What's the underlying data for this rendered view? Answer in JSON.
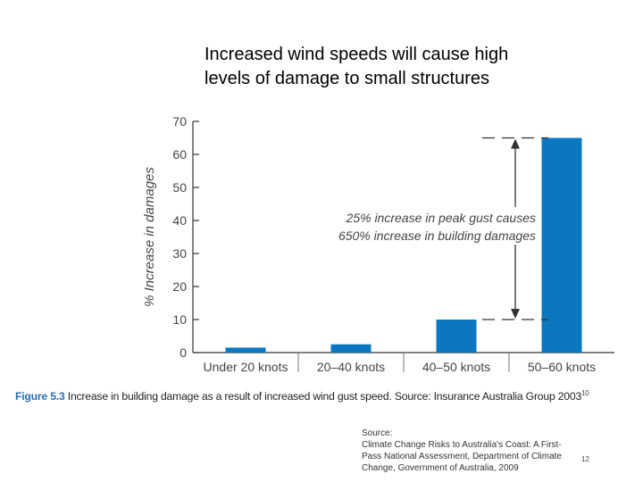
{
  "slide": {
    "title_line1": "Increased wind speeds will cause high",
    "title_line2": "levels of damage to small structures",
    "caption_label": "Figure 5.3",
    "caption_text": " Increase in building damage as a result of increased wind gust speed. Source: Insurance Australia Group 2003",
    "caption_ref": "10",
    "source_lines": [
      "Source:",
      "Climate Change Risks to Australia's Coast: A First-",
      "Pass National Assessment, Department of Climate",
      "Change, Government of Australia, 2009"
    ],
    "page_number": "12"
  },
  "chart_data": {
    "type": "bar",
    "categories": [
      "Under 20 knots",
      "20–40 knots",
      "40–50 knots",
      "50–60 knots"
    ],
    "values": [
      1.5,
      2.5,
      10,
      65
    ],
    "title": "",
    "xlabel": "",
    "ylabel": "% Increase in damages",
    "ylim": [
      0,
      70
    ],
    "yticks": [
      0,
      10,
      20,
      30,
      40,
      50,
      60,
      70
    ],
    "grid": false,
    "bar_color": "#0a77c0",
    "annotation": {
      "line1": "25% increase in peak gust causes",
      "line2": "650% increase in building damages",
      "from_value": 10,
      "to_value": 65
    }
  }
}
